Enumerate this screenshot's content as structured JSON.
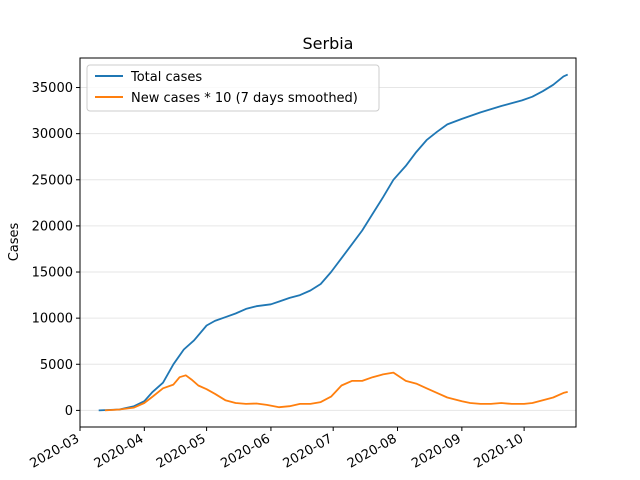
{
  "chart_data": {
    "type": "line",
    "title": "Serbia",
    "xlabel": "",
    "ylabel": "Cases",
    "x_range": [
      "2020-03-01",
      "2020-10-26"
    ],
    "ylim": [
      -1800,
      38200
    ],
    "grid": "horizontal",
    "legend_position": "top-left",
    "x_ticks": [
      "2020-03",
      "2020-04",
      "2020-05",
      "2020-06",
      "2020-07",
      "2020-08",
      "2020-09",
      "2020-10"
    ],
    "y_ticks": [
      0,
      5000,
      10000,
      15000,
      20000,
      25000,
      30000,
      35000
    ],
    "series": [
      {
        "name": "Total cases",
        "color": "#1f77b4",
        "points": [
          [
            "2020-03-10",
            0
          ],
          [
            "2020-03-20",
            100
          ],
          [
            "2020-03-27",
            450
          ],
          [
            "2020-04-01",
            1000
          ],
          [
            "2020-04-05",
            2000
          ],
          [
            "2020-04-10",
            3000
          ],
          [
            "2020-04-15",
            5000
          ],
          [
            "2020-04-20",
            6600
          ],
          [
            "2020-04-25",
            7600
          ],
          [
            "2020-05-01",
            9200
          ],
          [
            "2020-05-05",
            9700
          ],
          [
            "2020-05-10",
            10100
          ],
          [
            "2020-05-15",
            10500
          ],
          [
            "2020-05-20",
            11000
          ],
          [
            "2020-05-25",
            11300
          ],
          [
            "2020-06-01",
            11500
          ],
          [
            "2020-06-05",
            11800
          ],
          [
            "2020-06-10",
            12200
          ],
          [
            "2020-06-15",
            12500
          ],
          [
            "2020-06-20",
            13000
          ],
          [
            "2020-06-25",
            13700
          ],
          [
            "2020-06-30",
            15000
          ],
          [
            "2020-07-05",
            16500
          ],
          [
            "2020-07-10",
            18000
          ],
          [
            "2020-07-15",
            19500
          ],
          [
            "2020-07-20",
            21300
          ],
          [
            "2020-07-25",
            23100
          ],
          [
            "2020-07-30",
            25000
          ],
          [
            "2020-08-05",
            26500
          ],
          [
            "2020-08-10",
            28000
          ],
          [
            "2020-08-15",
            29300
          ],
          [
            "2020-08-20",
            30200
          ],
          [
            "2020-08-25",
            31000
          ],
          [
            "2020-09-01",
            31600
          ],
          [
            "2020-09-10",
            32300
          ],
          [
            "2020-09-20",
            33000
          ],
          [
            "2020-09-30",
            33600
          ],
          [
            "2020-10-05",
            34000
          ],
          [
            "2020-10-10",
            34600
          ],
          [
            "2020-10-15",
            35300
          ],
          [
            "2020-10-20",
            36200
          ],
          [
            "2020-10-22",
            36400
          ]
        ]
      },
      {
        "name": "New cases * 10 (7 days smoothed)",
        "color": "#ff7f0e",
        "points": [
          [
            "2020-03-13",
            0
          ],
          [
            "2020-03-20",
            100
          ],
          [
            "2020-03-27",
            300
          ],
          [
            "2020-04-01",
            800
          ],
          [
            "2020-04-05",
            1500
          ],
          [
            "2020-04-10",
            2400
          ],
          [
            "2020-04-15",
            2800
          ],
          [
            "2020-04-18",
            3600
          ],
          [
            "2020-04-21",
            3800
          ],
          [
            "2020-04-24",
            3300
          ],
          [
            "2020-04-27",
            2700
          ],
          [
            "2020-05-01",
            2300
          ],
          [
            "2020-05-05",
            1800
          ],
          [
            "2020-05-10",
            1100
          ],
          [
            "2020-05-15",
            800
          ],
          [
            "2020-05-20",
            700
          ],
          [
            "2020-05-25",
            750
          ],
          [
            "2020-05-30",
            600
          ],
          [
            "2020-06-05",
            350
          ],
          [
            "2020-06-10",
            450
          ],
          [
            "2020-06-15",
            700
          ],
          [
            "2020-06-20",
            700
          ],
          [
            "2020-06-25",
            900
          ],
          [
            "2020-06-30",
            1500
          ],
          [
            "2020-07-05",
            2700
          ],
          [
            "2020-07-10",
            3200
          ],
          [
            "2020-07-15",
            3200
          ],
          [
            "2020-07-20",
            3600
          ],
          [
            "2020-07-25",
            3900
          ],
          [
            "2020-07-30",
            4100
          ],
          [
            "2020-08-05",
            3200
          ],
          [
            "2020-08-10",
            2900
          ],
          [
            "2020-08-15",
            2400
          ],
          [
            "2020-08-20",
            1900
          ],
          [
            "2020-08-25",
            1400
          ],
          [
            "2020-09-01",
            1000
          ],
          [
            "2020-09-05",
            800
          ],
          [
            "2020-09-10",
            700
          ],
          [
            "2020-09-15",
            700
          ],
          [
            "2020-09-20",
            800
          ],
          [
            "2020-09-25",
            700
          ],
          [
            "2020-10-01",
            700
          ],
          [
            "2020-10-05",
            800
          ],
          [
            "2020-10-10",
            1100
          ],
          [
            "2020-10-15",
            1400
          ],
          [
            "2020-10-20",
            1900
          ],
          [
            "2020-10-22",
            2000
          ]
        ]
      }
    ]
  }
}
